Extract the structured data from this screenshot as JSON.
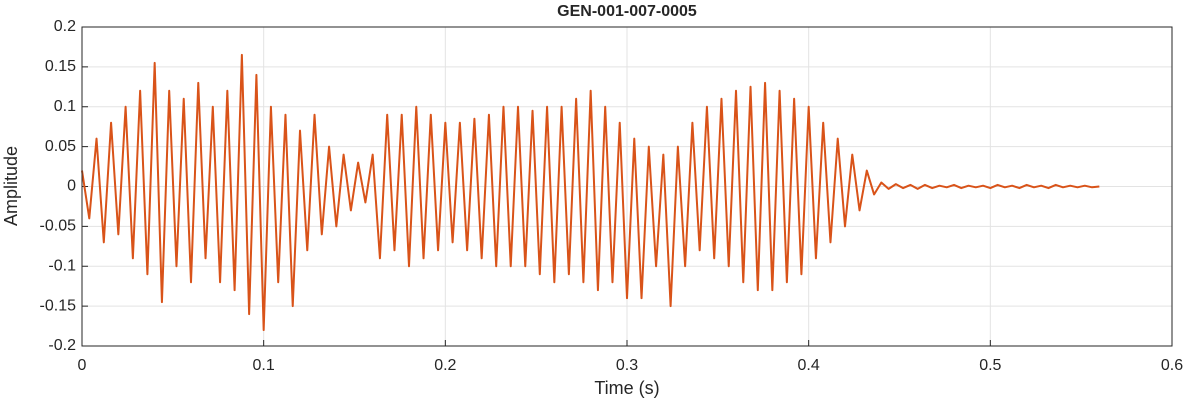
{
  "chart_data": {
    "type": "line",
    "title": "GEN-001-007-0005",
    "xlabel": "Time (s)",
    "ylabel": "Amplitude",
    "xlim": [
      0,
      0.6
    ],
    "xticks": [
      0,
      0.1,
      0.2,
      0.3,
      0.4,
      0.5,
      0.6
    ],
    "ylim": [
      -0.2,
      0.2
    ],
    "yticks": [
      -0.2,
      -0.15,
      -0.1,
      -0.05,
      0,
      0.05,
      0.1,
      0.15,
      0.2
    ],
    "grid": true,
    "x": [
      0,
      0.004,
      0.008,
      0.012,
      0.016,
      0.02,
      0.024,
      0.028,
      0.032,
      0.036,
      0.04,
      0.044,
      0.048,
      0.052,
      0.056,
      0.06,
      0.064,
      0.068,
      0.072,
      0.076,
      0.08,
      0.084,
      0.088,
      0.092,
      0.096,
      0.1,
      0.104,
      0.108,
      0.112,
      0.116,
      0.12,
      0.124,
      0.128,
      0.132,
      0.136,
      0.14,
      0.144,
      0.148,
      0.152,
      0.156,
      0.16,
      0.164,
      0.168,
      0.172,
      0.176,
      0.18,
      0.184,
      0.188,
      0.192,
      0.196,
      0.2,
      0.204,
      0.208,
      0.212,
      0.216,
      0.22,
      0.224,
      0.228,
      0.232,
      0.236,
      0.24,
      0.244,
      0.248,
      0.252,
      0.256,
      0.26,
      0.264,
      0.268,
      0.272,
      0.276,
      0.28,
      0.284,
      0.288,
      0.292,
      0.296,
      0.3,
      0.304,
      0.308,
      0.312,
      0.316,
      0.32,
      0.324,
      0.328,
      0.332,
      0.336,
      0.34,
      0.344,
      0.348,
      0.352,
      0.356,
      0.36,
      0.364,
      0.368,
      0.372,
      0.376,
      0.38,
      0.384,
      0.388,
      0.392,
      0.396,
      0.4,
      0.404,
      0.408,
      0.412,
      0.416,
      0.42,
      0.424,
      0.428,
      0.432,
      0.436,
      0.44,
      0.444,
      0.448,
      0.452,
      0.456,
      0.46,
      0.464,
      0.468,
      0.472,
      0.476,
      0.48,
      0.484,
      0.488,
      0.492,
      0.496,
      0.5,
      0.504,
      0.508,
      0.512,
      0.516,
      0.52,
      0.524,
      0.528,
      0.532,
      0.536,
      0.54,
      0.544,
      0.548,
      0.552,
      0.556,
      0.56
    ],
    "series": [
      {
        "color": "#D95319",
        "values": [
          0.02,
          -0.04,
          0.06,
          -0.07,
          0.08,
          -0.06,
          0.1,
          -0.09,
          0.12,
          -0.11,
          0.155,
          -0.145,
          0.12,
          -0.1,
          0.11,
          -0.12,
          0.13,
          -0.09,
          0.1,
          -0.12,
          0.12,
          -0.13,
          0.165,
          -0.16,
          0.14,
          -0.18,
          0.1,
          -0.12,
          0.09,
          -0.15,
          0.07,
          -0.08,
          0.09,
          -0.06,
          0.05,
          -0.05,
          0.04,
          -0.03,
          0.03,
          -0.02,
          0.04,
          -0.09,
          0.09,
          -0.08,
          0.09,
          -0.1,
          0.1,
          -0.09,
          0.09,
          -0.08,
          0.08,
          -0.07,
          0.08,
          -0.08,
          0.085,
          -0.09,
          0.09,
          -0.1,
          0.1,
          -0.1,
          0.1,
          -0.1,
          0.095,
          -0.11,
          0.1,
          -0.12,
          0.1,
          -0.11,
          0.11,
          -0.12,
          0.12,
          -0.13,
          0.1,
          -0.12,
          0.08,
          -0.14,
          0.06,
          -0.14,
          0.05,
          -0.1,
          0.04,
          -0.15,
          0.05,
          -0.1,
          0.08,
          -0.08,
          0.1,
          -0.09,
          0.11,
          -0.1,
          0.12,
          -0.12,
          0.125,
          -0.13,
          0.13,
          -0.13,
          0.12,
          -0.12,
          0.11,
          -0.11,
          0.1,
          -0.09,
          0.08,
          -0.07,
          0.06,
          -0.05,
          0.04,
          -0.03,
          0.02,
          -0.01,
          0.005,
          -0.003,
          0.003,
          -0.002,
          0.002,
          -0.003,
          0.002,
          -0.002,
          0.001,
          -0.001,
          0.002,
          -0.002,
          0.001,
          -0.001,
          0.001,
          -0.002,
          0.002,
          -0.001,
          0.001,
          -0.002,
          0.002,
          -0.001,
          0.001,
          -0.002,
          0.002,
          -0.001,
          0.001,
          -0.001,
          0.001,
          -0.001,
          0
        ]
      }
    ]
  }
}
